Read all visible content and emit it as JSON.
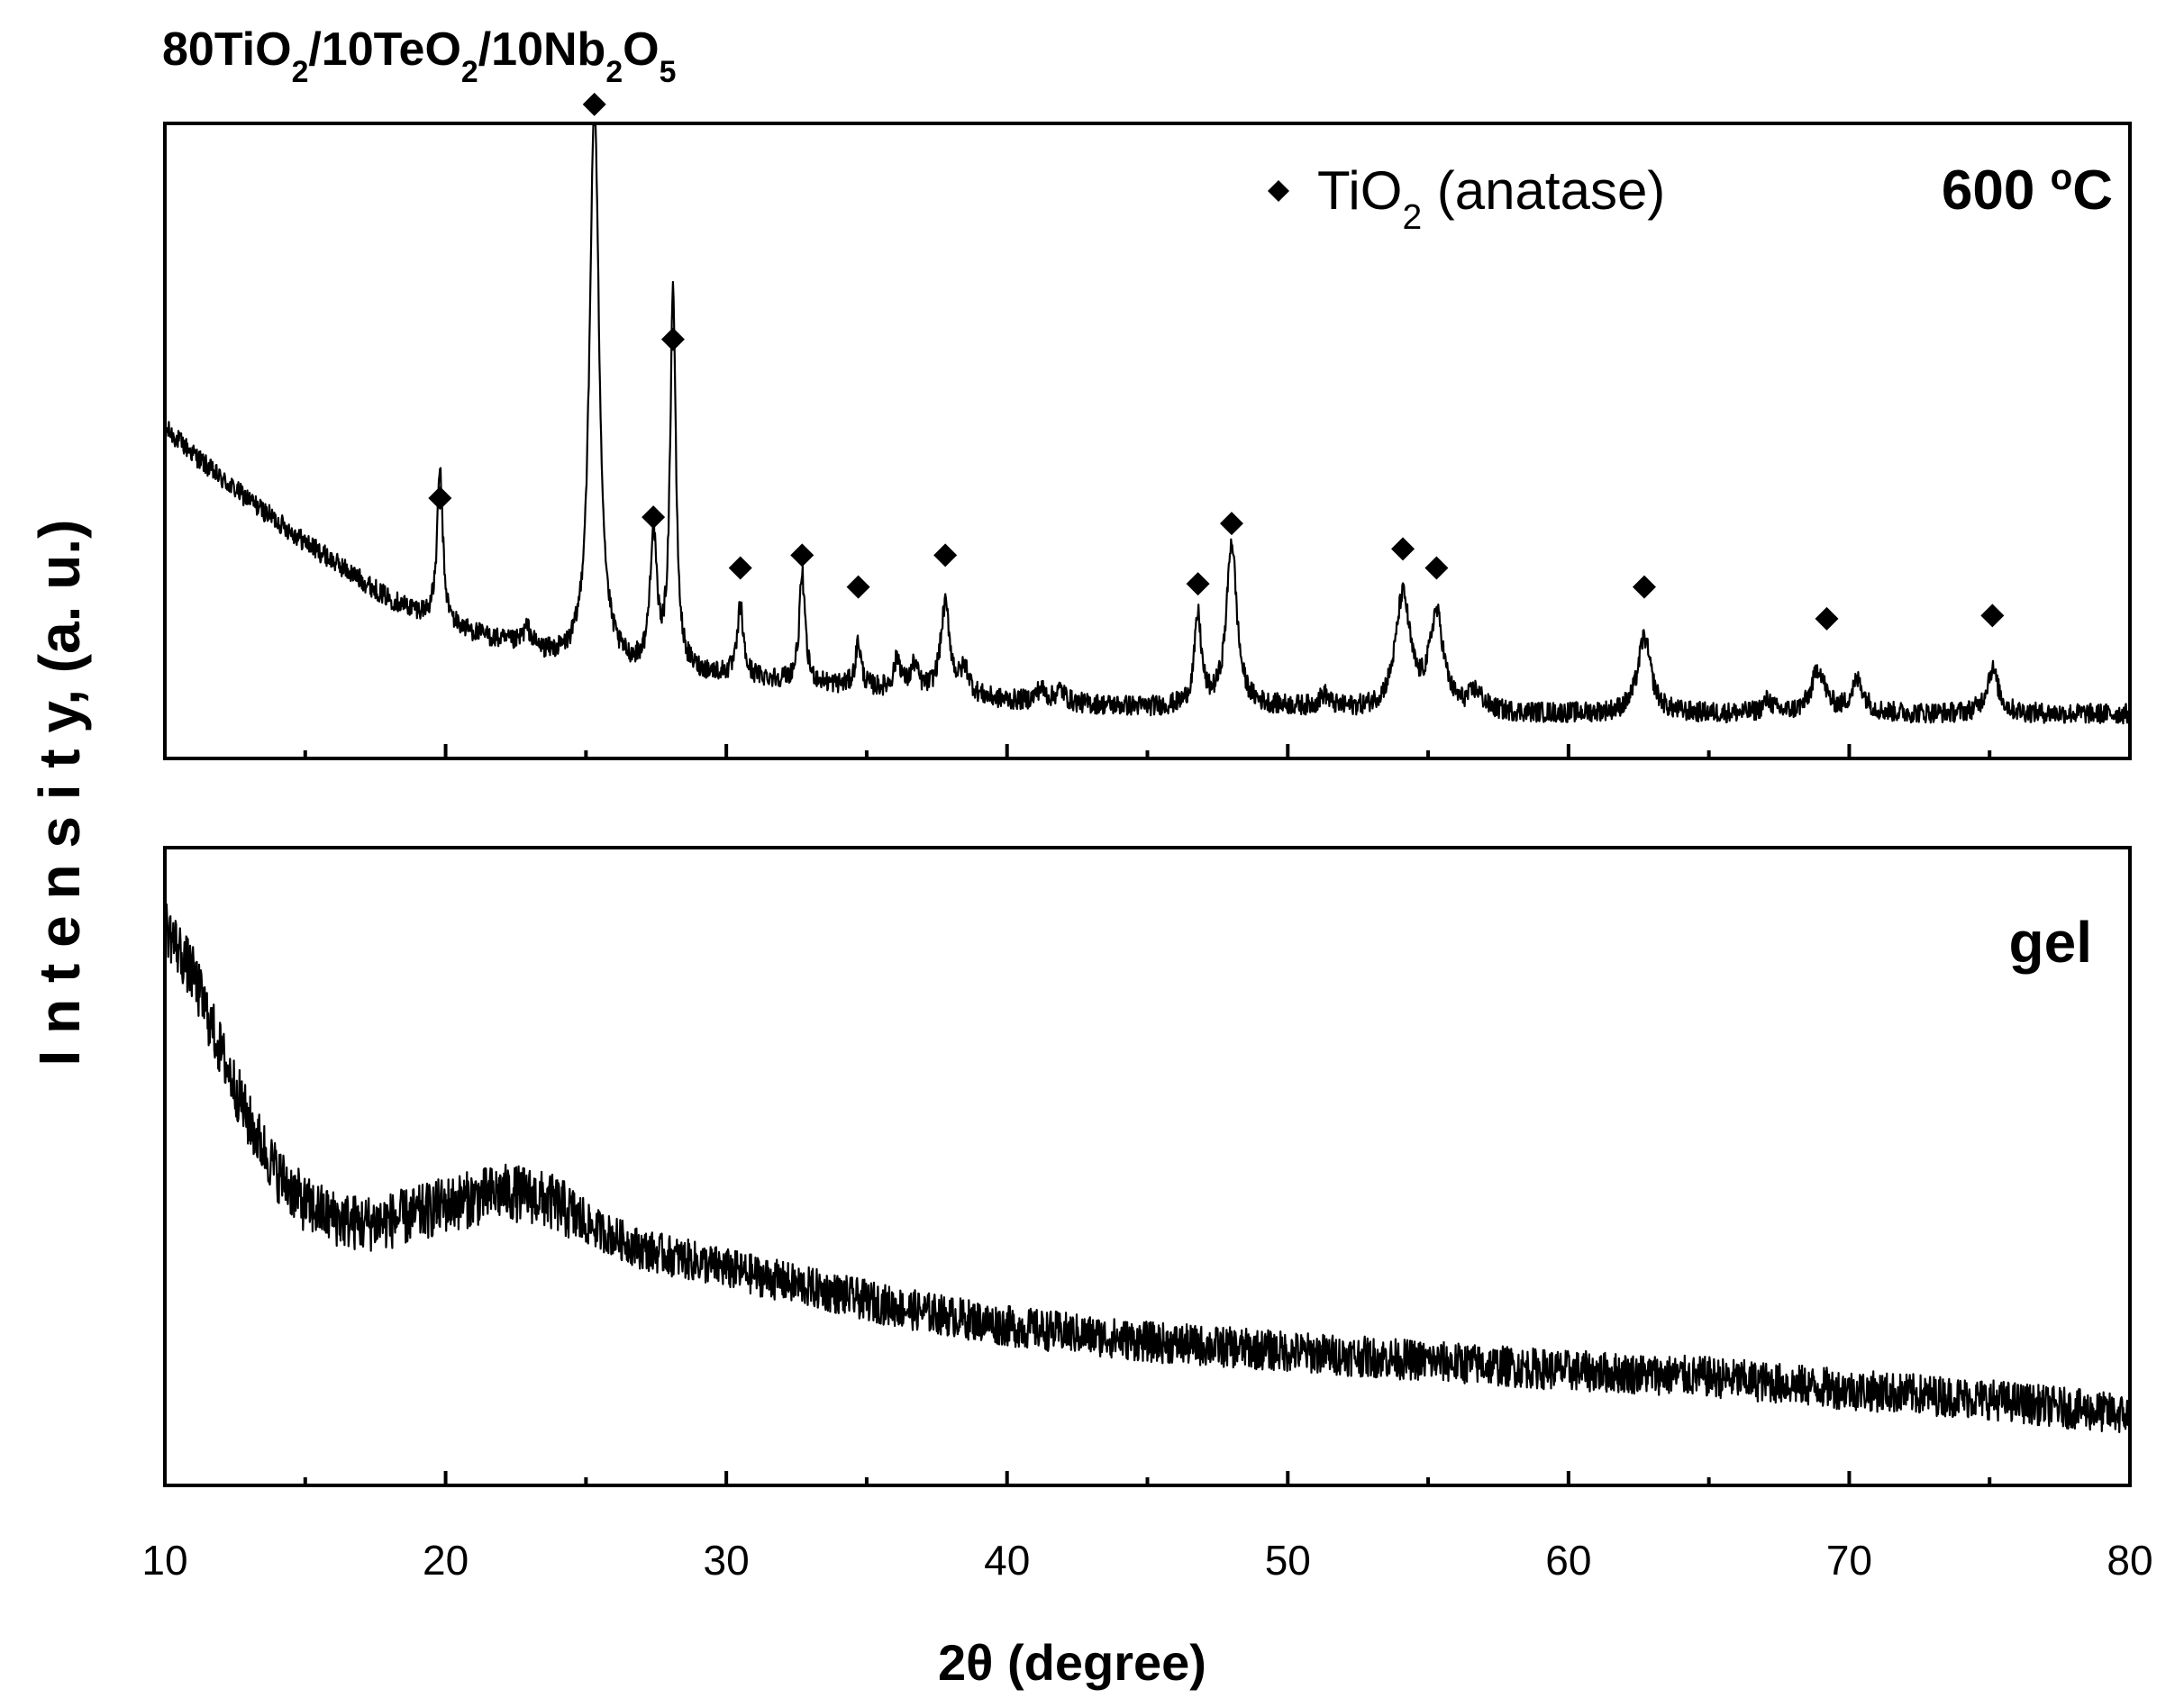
{
  "chart_data": {
    "type": "line",
    "title": {
      "parts": [
        {
          "text": "80TiO"
        },
        {
          "text": "2",
          "sub": true
        },
        {
          "text": "/10TeO"
        },
        {
          "text": "2",
          "sub": true
        },
        {
          "text": "/10Nb"
        },
        {
          "text": "2",
          "sub": true
        },
        {
          "text": "O"
        },
        {
          "text": "5",
          "sub": true
        }
      ]
    },
    "xlabel": "2θ (degree)",
    "ylabel": "I n t e n s i t y, (a. u.)",
    "xlim": [
      10,
      80
    ],
    "xticks": [
      10,
      20,
      30,
      40,
      50,
      60,
      70,
      80
    ],
    "panels": [
      {
        "label": "600 °C",
        "label_parts": [
          {
            "text": "600 "
          },
          {
            "text": "o",
            "sup": true
          },
          {
            "text": "C"
          }
        ],
        "legend": {
          "marker": "diamond",
          "parts": [
            {
              "text": "TiO"
            },
            {
              "text": "2",
              "sub": true
            },
            {
              "text": " (anatase)"
            }
          ],
          "position": "top-right"
        },
        "ylim": [
          0,
          100
        ],
        "baseline": {
          "x": [
            10,
            12,
            15,
            18,
            20,
            25,
            30,
            35,
            40,
            45,
            50,
            55,
            60,
            65,
            70,
            75,
            80
          ],
          "y": [
            52,
            44,
            34,
            25,
            21,
            14,
            13,
            11,
            9,
            8,
            8,
            7,
            7,
            7,
            7,
            7,
            7
          ]
        },
        "noise": 1.6,
        "peaks": [
          {
            "x": 19.8,
            "height": 24,
            "width": 0.12,
            "marked": true
          },
          {
            "x": 22.9,
            "height": 3,
            "width": 0.2,
            "marked": false
          },
          {
            "x": 25.3,
            "height": 90,
            "width": 0.2,
            "marked": true
          },
          {
            "x": 27.4,
            "height": 21,
            "width": 0.14,
            "marked": true
          },
          {
            "x": 28.1,
            "height": 60,
            "width": 0.12,
            "marked": true
          },
          {
            "x": 30.5,
            "height": 11,
            "width": 0.12,
            "marked": true
          },
          {
            "x": 32.7,
            "height": 17,
            "width": 0.12,
            "marked": true
          },
          {
            "x": 34.7,
            "height": 7,
            "width": 0.12,
            "marked": true
          },
          {
            "x": 36.1,
            "height": 5,
            "width": 0.15,
            "marked": false
          },
          {
            "x": 36.7,
            "height": 4,
            "width": 0.15,
            "marked": false
          },
          {
            "x": 37.8,
            "height": 14,
            "width": 0.2,
            "marked": true
          },
          {
            "x": 38.5,
            "height": 4,
            "width": 0.2,
            "marked": false
          },
          {
            "x": 41.2,
            "height": 2,
            "width": 0.2,
            "marked": false
          },
          {
            "x": 41.9,
            "height": 2,
            "width": 0.2,
            "marked": false
          },
          {
            "x": 46.8,
            "height": 14,
            "width": 0.15,
            "marked": true
          },
          {
            "x": 48.0,
            "height": 26,
            "width": 0.22,
            "marked": true
          },
          {
            "x": 51.3,
            "height": 2,
            "width": 0.2,
            "marked": false
          },
          {
            "x": 54.1,
            "height": 18,
            "width": 0.32,
            "marked": true
          },
          {
            "x": 55.3,
            "height": 15,
            "width": 0.3,
            "marked": true
          },
          {
            "x": 56.7,
            "height": 3,
            "width": 0.3,
            "marked": false
          },
          {
            "x": 62.7,
            "height": 12,
            "width": 0.28,
            "marked": true
          },
          {
            "x": 67.1,
            "height": 2,
            "width": 0.2,
            "marked": false
          },
          {
            "x": 68.9,
            "height": 7,
            "width": 0.28,
            "marked": true
          },
          {
            "x": 70.3,
            "height": 5,
            "width": 0.28,
            "marked": false
          },
          {
            "x": 75.1,
            "height": 7,
            "width": 0.25,
            "marked": true
          }
        ],
        "markers": [
          {
            "x": 19.8,
            "y": 41
          },
          {
            "x": 25.3,
            "y": 103
          },
          {
            "x": 27.4,
            "y": 38
          },
          {
            "x": 28.1,
            "y": 66
          },
          {
            "x": 30.5,
            "y": 30
          },
          {
            "x": 32.7,
            "y": 32
          },
          {
            "x": 34.7,
            "y": 27
          },
          {
            "x": 37.8,
            "y": 32
          },
          {
            "x": 46.8,
            "y": 27.5
          },
          {
            "x": 48.0,
            "y": 37
          },
          {
            "x": 54.1,
            "y": 33
          },
          {
            "x": 55.3,
            "y": 30
          },
          {
            "x": 62.7,
            "y": 27
          },
          {
            "x": 69.2,
            "y": 22
          },
          {
            "x": 75.1,
            "y": 22.5
          }
        ]
      },
      {
        "label": "gel",
        "label_parts": [
          {
            "text": "gel"
          }
        ],
        "ylim": [
          0,
          100
        ],
        "baseline": {
          "x": [
            10,
            11,
            12,
            13,
            14,
            15,
            16,
            17,
            18,
            19,
            20,
            21,
            22,
            23,
            24,
            25,
            27,
            30,
            33,
            36,
            40,
            45,
            50,
            55,
            60,
            65,
            70,
            75,
            80
          ],
          "y": [
            88,
            80,
            68,
            57,
            49,
            44,
            42,
            41,
            41.5,
            42.5,
            44,
            45,
            46,
            45.5,
            44,
            41,
            37,
            34,
            31,
            28,
            25,
            22.5,
            21,
            19.5,
            18,
            17,
            15,
            13.5,
            11
          ]
        },
        "noise": 3.2
      }
    ]
  }
}
